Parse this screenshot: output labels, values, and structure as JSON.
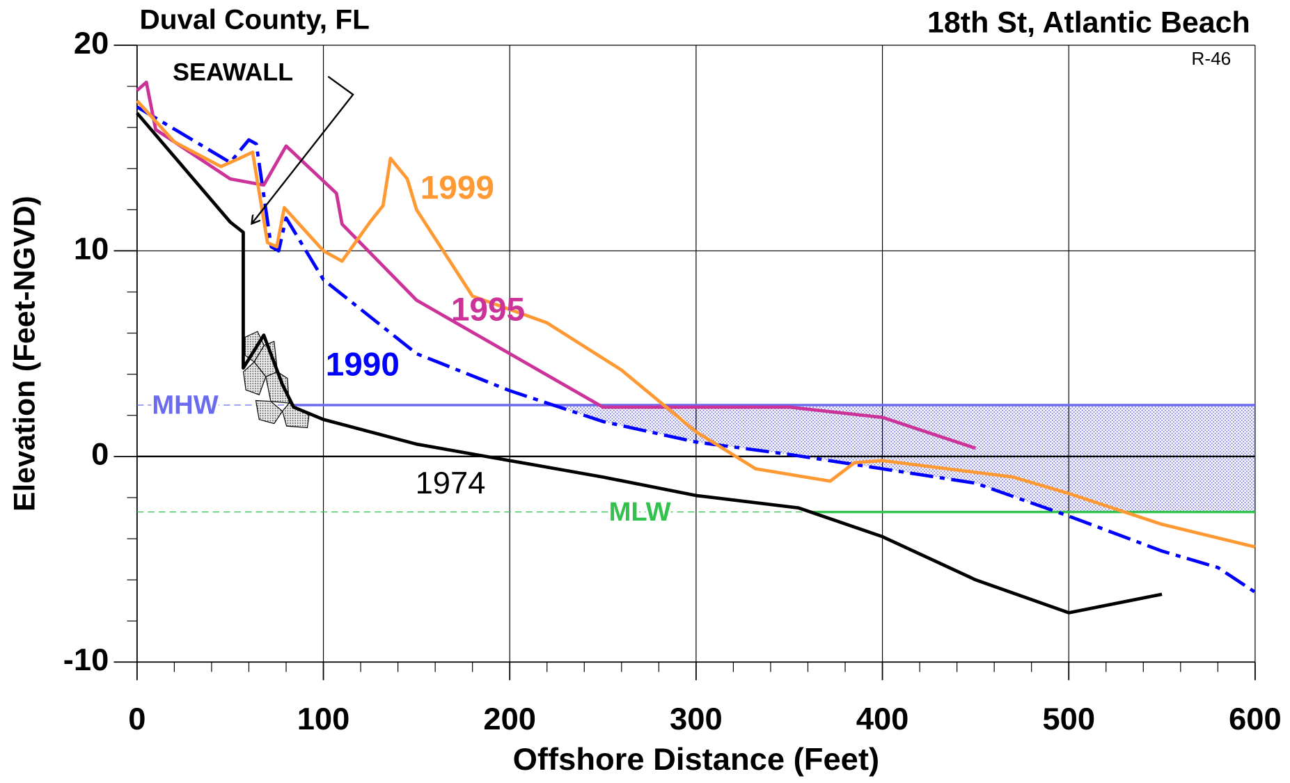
{
  "chart_data": {
    "type": "line",
    "title": "Duval County, FL",
    "subtitle": "18th St, Atlantic Beach",
    "annotations": [
      "R-46",
      "SEAWALL"
    ],
    "x_label": "Offshore Distance (Feet)",
    "y_label": "Elevation (Feet-NGVD)",
    "xlim": [
      0,
      600
    ],
    "ylim": [
      -10,
      20
    ],
    "xticks": [
      0,
      100,
      200,
      300,
      400,
      500,
      600
    ],
    "yticks": [
      -10,
      0,
      10,
      20
    ],
    "xminorticks": [
      20,
      40,
      60,
      80,
      120,
      140,
      160,
      180,
      220,
      240,
      260,
      280,
      320,
      340,
      360,
      380,
      420,
      440,
      460,
      480,
      520,
      540,
      560,
      580
    ],
    "yminorticks": [
      -8,
      -6,
      -4,
      -2,
      2,
      4,
      6,
      8,
      12,
      14,
      16,
      18
    ],
    "grid": true,
    "reference_lines": [
      {
        "label": "MHW",
        "value": 2.5,
        "color": "#6b6bf0"
      },
      {
        "label": "MLW",
        "value": -2.7,
        "color": "#33c24d"
      }
    ],
    "series": [
      {
        "name": "1974",
        "color": "#000000",
        "style": "solid",
        "x": [
          0,
          50,
          57,
          57,
          68,
          78,
          84,
          100,
          150,
          200,
          250,
          300,
          355,
          400,
          450,
          500,
          550
        ],
        "values": [
          16.7,
          11.4,
          10.9,
          4.3,
          5.9,
          3.5,
          2.4,
          1.8,
          0.6,
          -0.2,
          -1,
          -1.9,
          -2.5,
          -3.9,
          -6,
          -7.6,
          -6.7
        ]
      },
      {
        "name": "1990",
        "color": "#0000ff",
        "style": "dashdot",
        "x": [
          0,
          50,
          60,
          64,
          72,
          76,
          80,
          100,
          150,
          200,
          250,
          300,
          350,
          400,
          450,
          500,
          550,
          580,
          600
        ],
        "values": [
          17,
          14.3,
          15.4,
          15.2,
          10.2,
          10,
          11.6,
          8.6,
          5,
          3.2,
          1.7,
          0.7,
          0.1,
          -0.6,
          -1.3,
          -2.9,
          -4.6,
          -5.4,
          -6.6
        ]
      },
      {
        "name": "1995",
        "color": "#cc3399",
        "style": "solid",
        "x": [
          0,
          5,
          10,
          50,
          68,
          80,
          107,
          110,
          150,
          250,
          350,
          400,
          450
        ],
        "values": [
          17.8,
          18.2,
          15.9,
          13.5,
          13.2,
          15.1,
          12.8,
          11.3,
          7.6,
          2.4,
          2.4,
          1.9,
          0.4
        ]
      },
      {
        "name": "1999",
        "color": "#ff9933",
        "style": "solid",
        "x": [
          0,
          20,
          45,
          55,
          62,
          70,
          75,
          79,
          90,
          100,
          110,
          125,
          132,
          136,
          145,
          150,
          170,
          180,
          220,
          260,
          300,
          332,
          372,
          385,
          400,
          470,
          500,
          550,
          600
        ],
        "values": [
          17.3,
          15.3,
          14.1,
          14.5,
          14.8,
          10.4,
          10.2,
          12.1,
          11,
          10,
          9.5,
          11.4,
          12.2,
          14.5,
          13.5,
          12,
          9.2,
          7.8,
          6.5,
          4.2,
          1.2,
          -0.6,
          -1.2,
          -0.3,
          -0.2,
          -1,
          -1.8,
          -3.3,
          -4.4
        ]
      }
    ]
  }
}
